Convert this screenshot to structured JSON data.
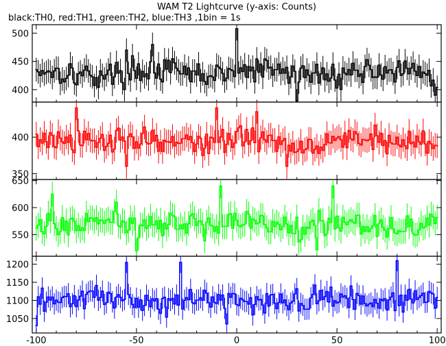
{
  "title": "WAM T2 Lightcurve (y-axis: Counts)",
  "subtitle": "black:TH0, red:TH1, green:TH2, blue:TH3 ,1bin = 1s",
  "colors": {
    "TH0": "#000000",
    "TH1": "#ff0000",
    "TH2": "#00ff00",
    "TH3": "#0000ff"
  },
  "chart_data": [
    {
      "type": "line",
      "name": "TH0",
      "color": "#000000",
      "xlim": [
        -102,
        102
      ],
      "ylim": [
        378,
        515
      ],
      "yticks": [
        400,
        450,
        500
      ],
      "mean": 430,
      "amplitude": 20,
      "spikes": [
        [
          0,
          508
        ],
        [
          -42,
          480
        ],
        [
          -55,
          470
        ],
        [
          30,
          380
        ],
        [
          99,
          390
        ]
      ]
    },
    {
      "type": "line",
      "name": "TH1",
      "color": "#ff0000",
      "xlim": [
        -102,
        102
      ],
      "ylim": [
        342,
        448
      ],
      "yticks": [
        350,
        400
      ],
      "mean": 395,
      "amplitude": 16,
      "spikes": [
        [
          -80,
          440
        ],
        [
          -10,
          440
        ],
        [
          10,
          435
        ],
        [
          -55,
          360
        ],
        [
          25,
          360
        ]
      ]
    },
    {
      "type": "line",
      "name": "TH2",
      "color": "#00ff00",
      "xlim": [
        -102,
        102
      ],
      "ylim": [
        510,
        652
      ],
      "yticks": [
        550,
        600,
        650
      ],
      "mean": 570,
      "amplitude": 22,
      "spikes": [
        [
          -92,
          625
        ],
        [
          -8,
          640
        ],
        [
          48,
          640
        ],
        [
          -50,
          520
        ],
        [
          40,
          522
        ]
      ]
    },
    {
      "type": "line",
      "name": "TH3",
      "color": "#0000ff",
      "xlim": [
        -102,
        102
      ],
      "ylim": [
        1010,
        1222
      ],
      "yticks": [
        1050,
        1100,
        1150,
        1200
      ],
      "mean": 1100,
      "amplitude": 28,
      "spikes": [
        [
          -55,
          1205
        ],
        [
          -28,
          1205
        ],
        [
          80,
          1210
        ],
        [
          -100,
          1030
        ],
        [
          -5,
          1035
        ]
      ]
    }
  ],
  "xaxis": {
    "ticks": [
      -100,
      -50,
      0,
      50,
      100
    ]
  }
}
